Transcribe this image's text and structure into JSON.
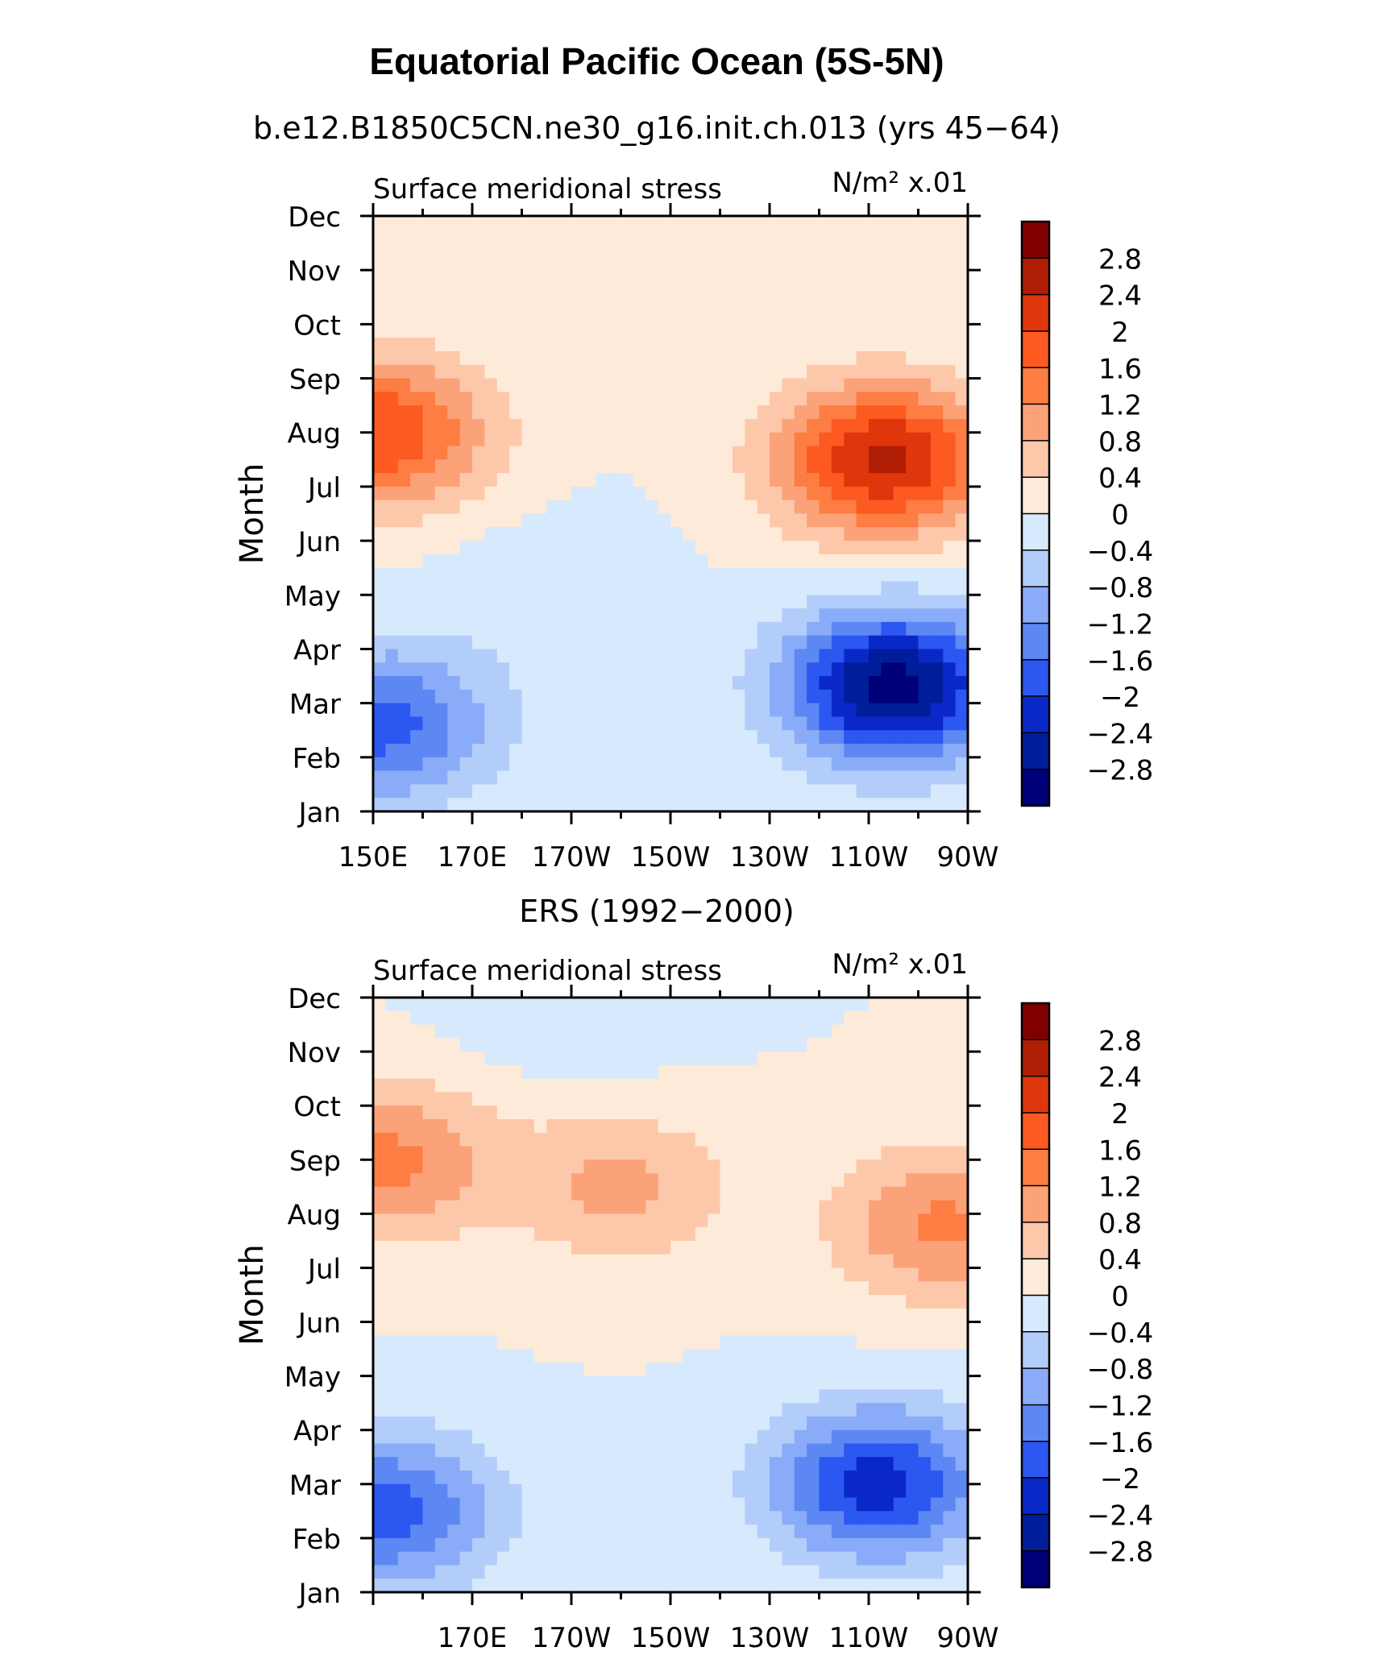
{
  "figure": {
    "title": "Equatorial Pacific Ocean (5S-5N)",
    "subtitle": "b.e12.B1850C5CN.ne30_g16.init.ch.013 (yrs 45−64)",
    "colorbar": {
      "labels": [
        "2.8",
        "2.4",
        "2",
        "1.6",
        "1.2",
        "0.8",
        "0.4",
        "0",
        "−0.4",
        "−0.8",
        "−1.2",
        "−1.6",
        "−2",
        "−2.4",
        "−2.8"
      ],
      "colors": [
        "#800000",
        "#b01e06",
        "#e0360c",
        "#fc5a20",
        "#fd7d43",
        "#fca279",
        "#fdc8aa",
        "#feead8",
        "#d7e9fc",
        "#b3cdfb",
        "#8aacf8",
        "#5d87f3",
        "#2c57f0",
        "#0a28c8",
        "#001e9a",
        "#000078"
      ]
    }
  },
  "chart_data": [
    {
      "type": "heatmap",
      "panel_title": "",
      "left_label": "Surface meridional stress",
      "units_label": "N/m² x.01",
      "ylabel": "Month",
      "xlabel": "",
      "y_ticks": [
        "Jan",
        "Feb",
        "Mar",
        "Apr",
        "May",
        "Jun",
        "Jul",
        "Aug",
        "Sep",
        "Oct",
        "Nov",
        "Dec"
      ],
      "x_tick_labels": [
        "150E",
        "170E",
        "170W",
        "150W",
        "130W",
        "110W",
        "90W"
      ],
      "x_range_deg_east": [
        150,
        270
      ],
      "y_range_months": [
        1,
        12
      ],
      "color_levels": [
        -2.8,
        -2.4,
        -2,
        -1.6,
        -1.2,
        -0.8,
        -0.4,
        0,
        0.4,
        0.8,
        1.2,
        1.6,
        2,
        2.4,
        2.8
      ],
      "features": [
        {
          "lon": 255,
          "month": 3.3,
          "value": -3.0
        },
        {
          "lon": 253,
          "month": 7.5,
          "value": 2.5
        },
        {
          "lon": 151,
          "month": 8.0,
          "value": 2.0
        },
        {
          "lon": 152,
          "month": 2.6,
          "value": -1.8
        },
        {
          "lon": 185,
          "month": 5.0,
          "value": -0.3
        }
      ]
    },
    {
      "type": "heatmap",
      "panel_title": "ERS (1992−2000)",
      "left_label": "Surface meridional stress",
      "units_label": "N/m² x.01",
      "ylabel": "Month",
      "xlabel": "",
      "y_ticks": [
        "Jan",
        "Feb",
        "Mar",
        "Apr",
        "May",
        "Jun",
        "Jul",
        "Aug",
        "Sep",
        "Oct",
        "Nov",
        "Dec"
      ],
      "x_tick_labels": [
        "170E",
        "170W",
        "150W",
        "130W",
        "110W",
        "90W"
      ],
      "x_range_deg_east": [
        150,
        270
      ],
      "y_range_months": [
        1,
        12
      ],
      "color_levels": [
        -2.8,
        -2.4,
        -2,
        -1.6,
        -1.2,
        -0.8,
        -0.4,
        0,
        0.4,
        0.8,
        1.2,
        1.6,
        2,
        2.4,
        2.8
      ],
      "features": [
        {
          "lon": 252,
          "month": 3.0,
          "value": -2.2
        },
        {
          "lon": 265,
          "month": 7.8,
          "value": 1.3
        },
        {
          "lon": 153,
          "month": 9.0,
          "value": 1.3
        },
        {
          "lon": 153,
          "month": 2.5,
          "value": -1.8
        },
        {
          "lon": 200,
          "month": 8.5,
          "value": 0.9
        },
        {
          "lon": 190,
          "month": 11.8,
          "value": -0.3
        }
      ]
    }
  ]
}
